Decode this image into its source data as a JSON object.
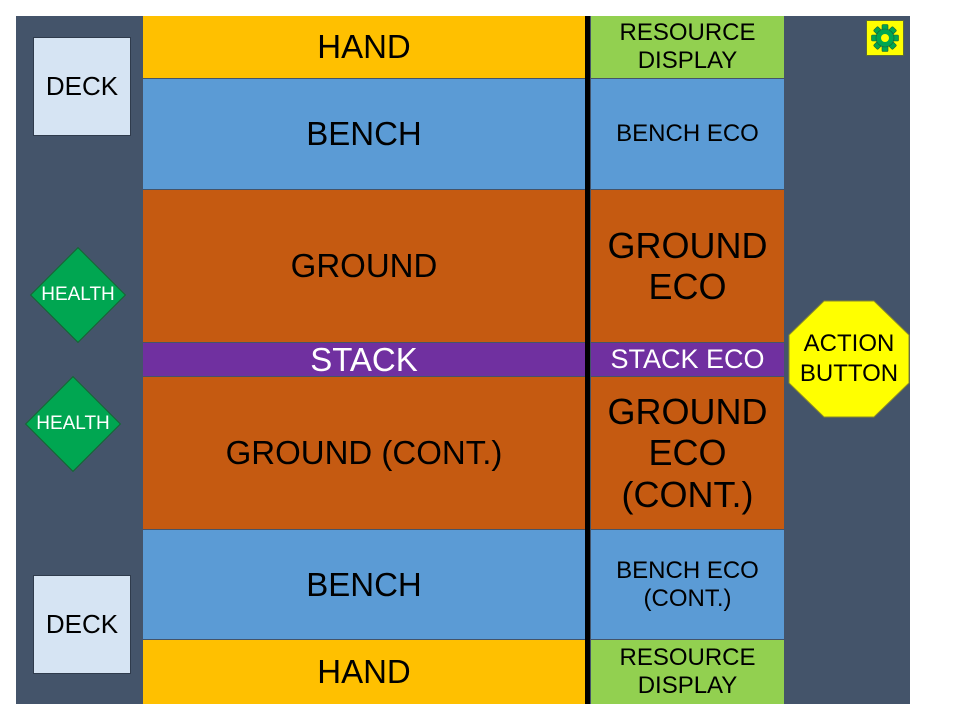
{
  "board": {
    "hand_top": "HAND",
    "bench_top": "BENCH",
    "ground_top": "GROUND",
    "stack": "STACK",
    "ground_bottom": "GROUND (CONT.)",
    "bench_bottom": "BENCH",
    "hand_bottom": "HAND"
  },
  "eco": {
    "resource_top": "RESOURCE DISPLAY",
    "bench_top": "BENCH ECO",
    "ground_top": "GROUND ECO",
    "stack": "STACK ECO",
    "ground_bottom": "GROUND ECO (CONT.)",
    "bench_bottom": "BENCH ECO (CONT.)",
    "resource_bottom": "RESOURCE DISPLAY"
  },
  "left_panel": {
    "deck_top": "DECK",
    "health_top": "HEALTH",
    "health_bottom": "HEALTH",
    "deck_bottom": "DECK"
  },
  "right_panel": {
    "action_button": "ACTION BUTTON",
    "settings_icon": "gear-icon"
  },
  "colors": {
    "board_bg": "#44546a",
    "hand": "#ffc000",
    "bench": "#5b9bd5",
    "ground": "#c55a11",
    "stack": "#7030a0",
    "resource": "#92d050",
    "health": "#00a651",
    "action": "#ffff00",
    "deck": "#d6e4f3"
  }
}
